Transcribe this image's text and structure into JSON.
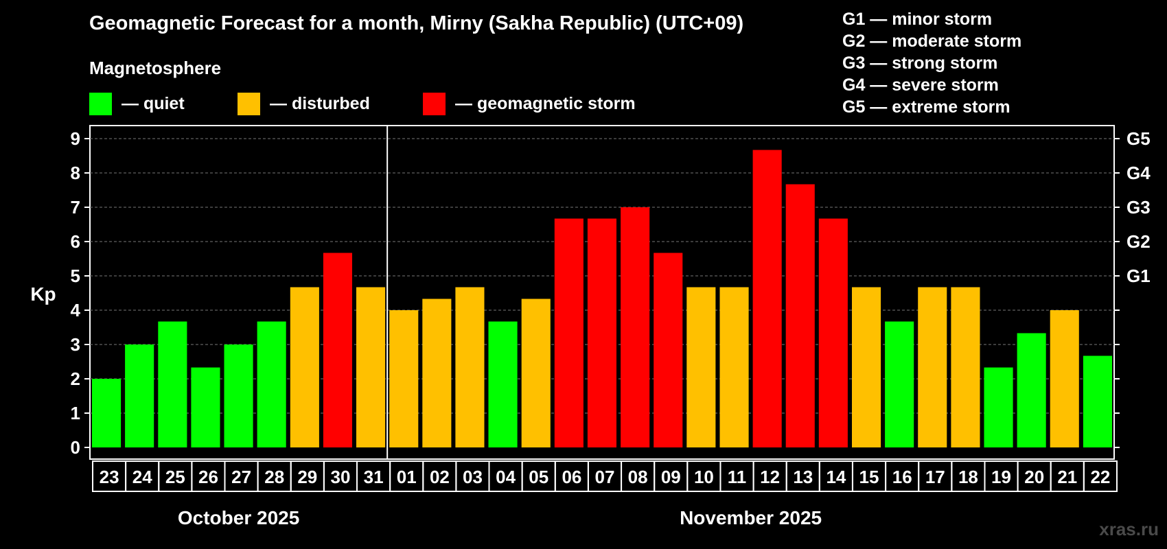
{
  "page": {
    "title": "Geomagnetic Forecast for a month, Mirny (Sakha Republic) (UTC+09)",
    "subtitle": "Magnetosphere",
    "watermark": "xras.ru"
  },
  "legend": {
    "items": [
      {
        "label": "— quiet",
        "color": "#00ff00"
      },
      {
        "label": "— disturbed",
        "color": "#ffc000"
      },
      {
        "label": "— geomagnetic storm",
        "color": "#ff0000"
      }
    ],
    "g_scale": [
      "G1 — minor storm",
      "G2 — moderate storm",
      "G3 — strong storm",
      "G4 — severe storm",
      "G5 — extreme storm"
    ]
  },
  "chart_data": {
    "type": "bar",
    "title": "Geomagnetic Forecast for a month, Mirny (Sakha Republic) (UTC+09)",
    "ylabel": "Kp",
    "ylim": [
      0,
      9
    ],
    "yticks": [
      0,
      1,
      2,
      3,
      4,
      5,
      6,
      7,
      8,
      9
    ],
    "right_axis": [
      {
        "kp": 5,
        "label": "G1"
      },
      {
        "kp": 6,
        "label": "G2"
      },
      {
        "kp": 7,
        "label": "G3"
      },
      {
        "kp": 8,
        "label": "G4"
      },
      {
        "kp": 9,
        "label": "G5"
      }
    ],
    "grid": true,
    "categories": [
      "23",
      "24",
      "25",
      "26",
      "27",
      "28",
      "29",
      "30",
      "31",
      "01",
      "02",
      "03",
      "04",
      "05",
      "06",
      "07",
      "08",
      "09",
      "10",
      "11",
      "12",
      "13",
      "14",
      "15",
      "16",
      "17",
      "18",
      "19",
      "20",
      "21",
      "22"
    ],
    "values": [
      2.0,
      3.0,
      3.67,
      2.33,
      3.0,
      3.67,
      4.67,
      5.67,
      4.67,
      4.0,
      4.33,
      4.67,
      3.67,
      4.33,
      6.67,
      6.67,
      7.0,
      5.67,
      4.67,
      4.67,
      8.67,
      7.67,
      6.67,
      4.67,
      3.67,
      4.67,
      4.67,
      2.33,
      3.33,
      4.0,
      2.67
    ],
    "levels": [
      "quiet",
      "quiet",
      "quiet",
      "quiet",
      "quiet",
      "quiet",
      "disturbed",
      "storm",
      "disturbed",
      "disturbed",
      "disturbed",
      "disturbed",
      "quiet",
      "disturbed",
      "storm",
      "storm",
      "storm",
      "storm",
      "disturbed",
      "disturbed",
      "storm",
      "storm",
      "storm",
      "disturbed",
      "quiet",
      "disturbed",
      "disturbed",
      "quiet",
      "quiet",
      "disturbed",
      "quiet"
    ],
    "level_colors": {
      "quiet": "#00ff00",
      "disturbed": "#ffc000",
      "storm": "#ff0000"
    },
    "month_groups": [
      {
        "label": "October 2025",
        "count": 9
      },
      {
        "label": "November 2025",
        "count": 22
      }
    ]
  }
}
